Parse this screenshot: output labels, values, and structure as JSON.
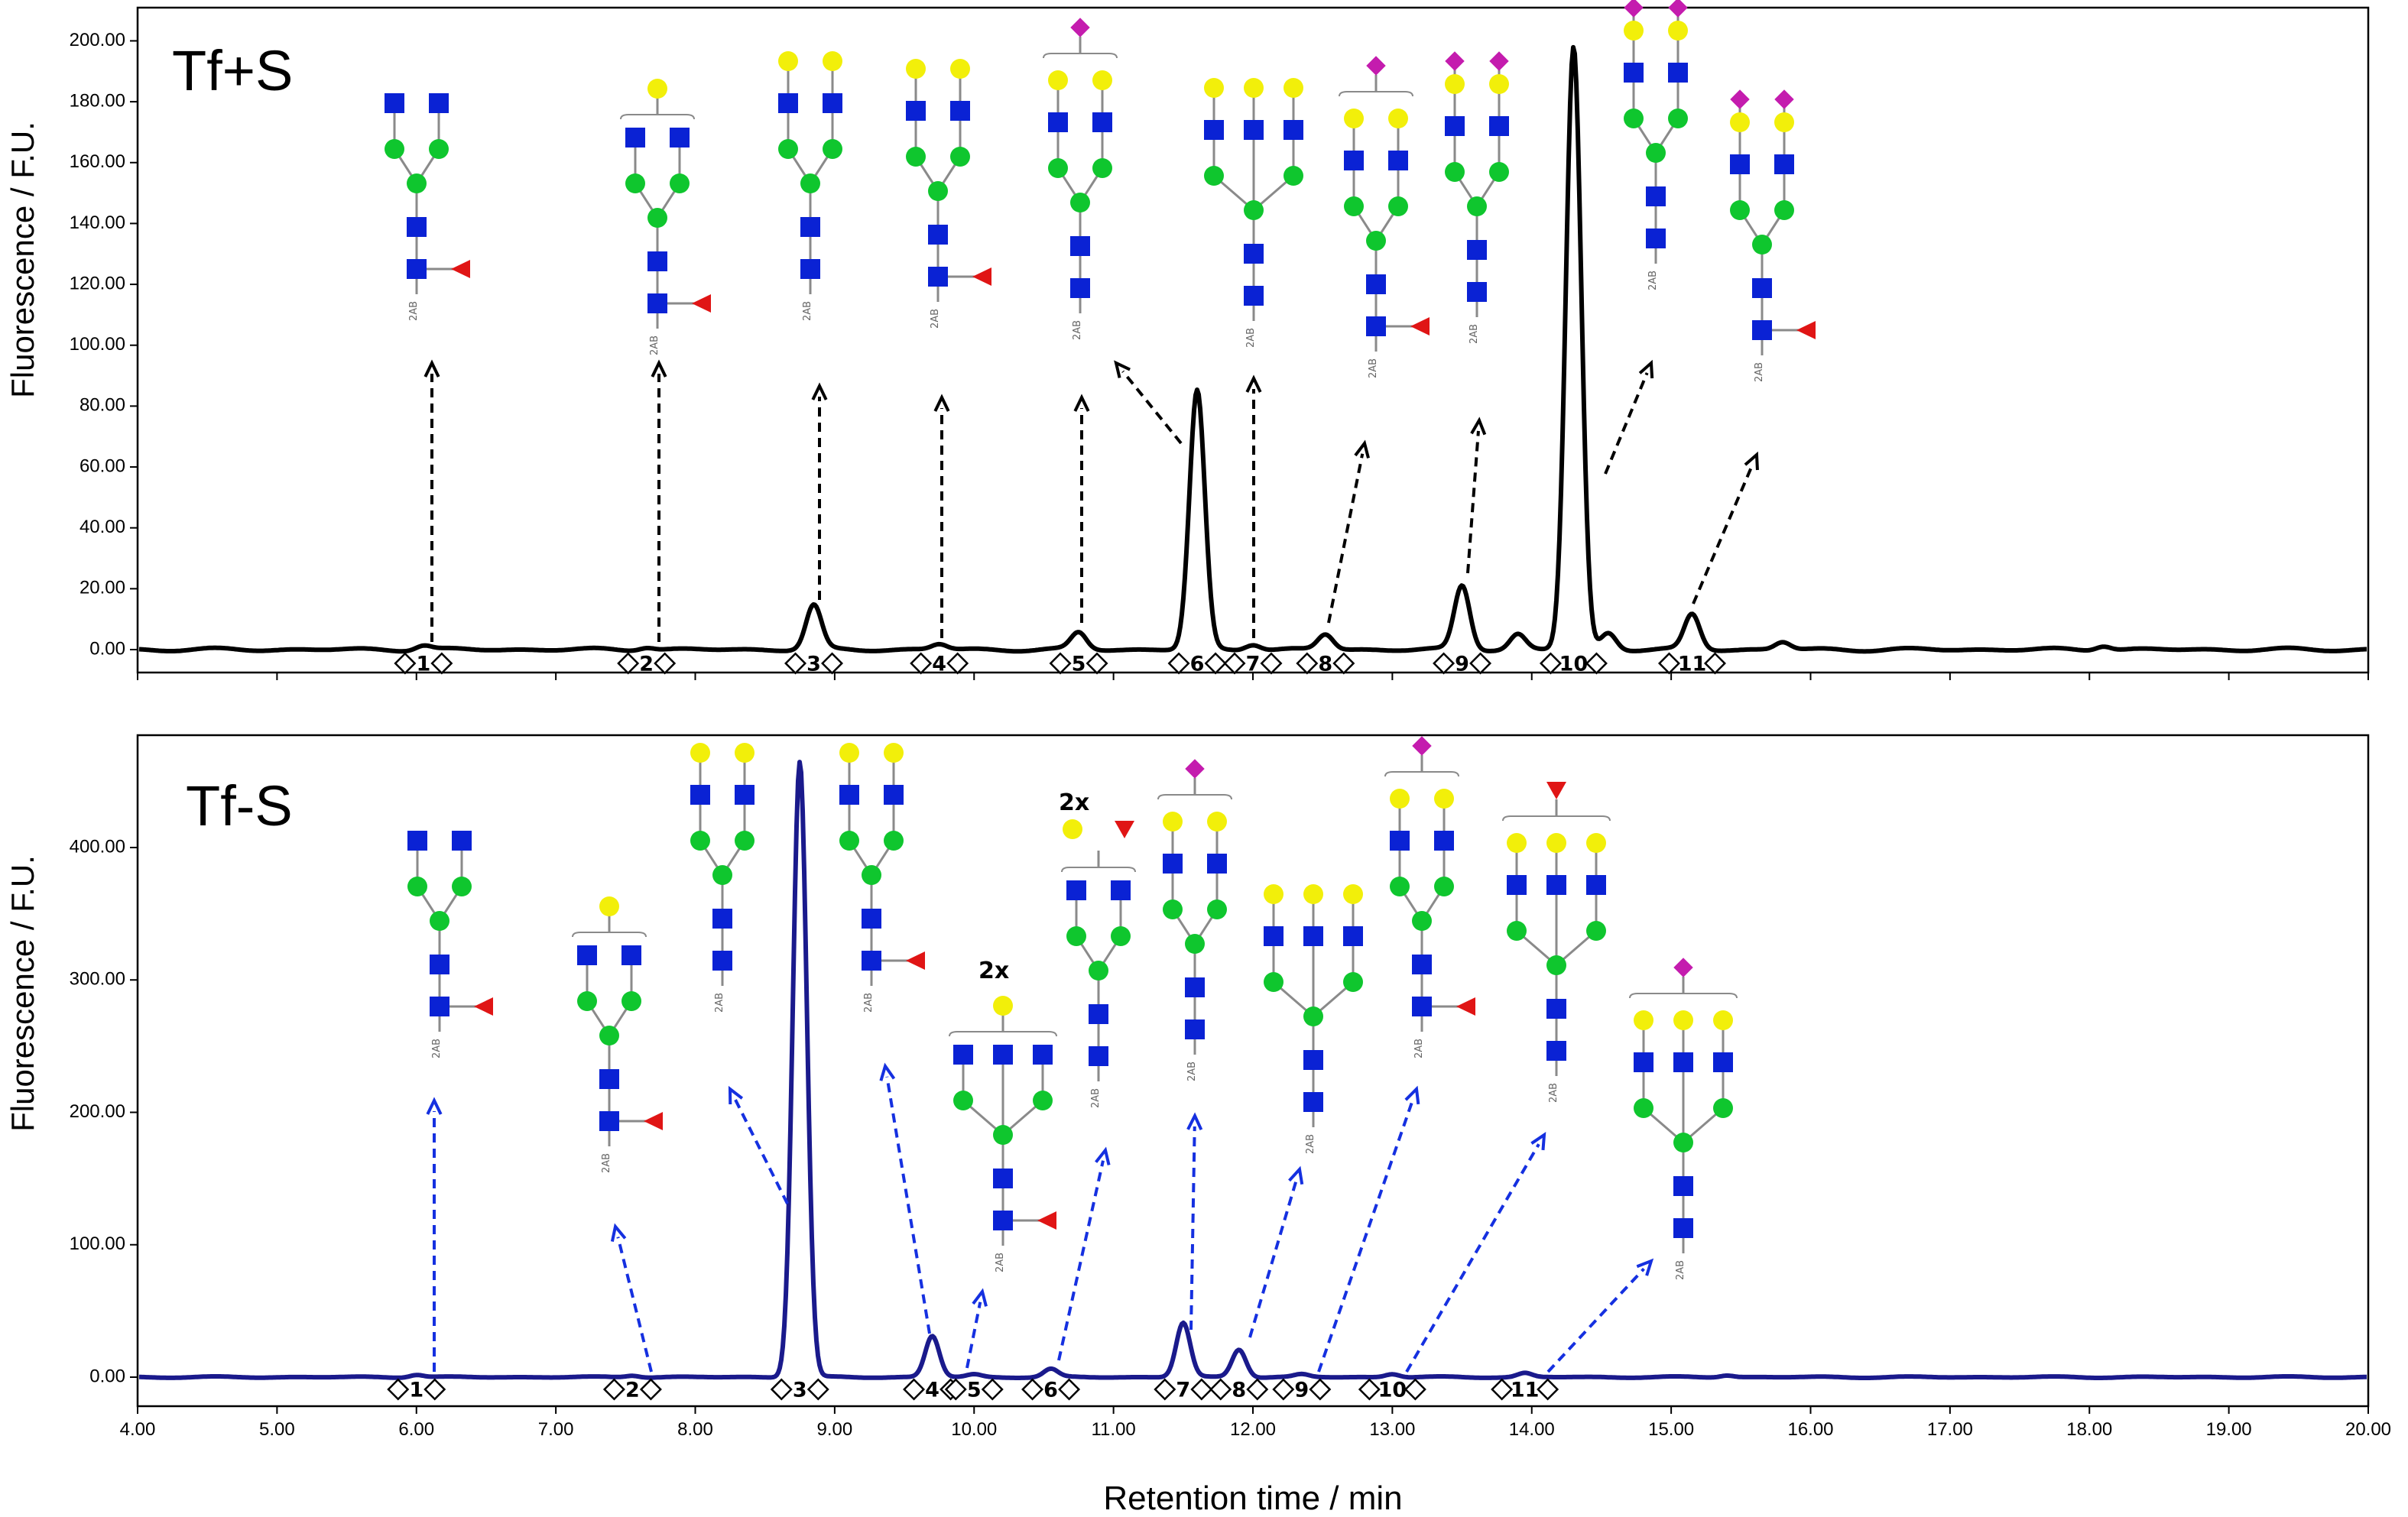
{
  "chart_data": [
    {
      "type": "line",
      "title": "Tf+S",
      "xlabel": "",
      "ylabel": "Fluorescence / F.U.",
      "xlim": [
        4.0,
        20.0
      ],
      "ylim": [
        -2,
        202
      ],
      "y_ticks": [
        "0.00",
        "20.00",
        "40.00",
        "60.00",
        "80.00",
        "100.00",
        "120.00",
        "140.00",
        "160.00",
        "180.00",
        "200.00"
      ],
      "line_color": "#000000",
      "peaks": [
        {
          "label": "1",
          "rt": 6.05,
          "height": 1.5
        },
        {
          "label": "2",
          "rt": 7.65,
          "height": 1.0
        },
        {
          "label": "3",
          "rt": 8.85,
          "height": 14.5
        },
        {
          "label": "4",
          "rt": 9.75,
          "height": 1.8
        },
        {
          "label": "5",
          "rt": 10.75,
          "height": 5.5
        },
        {
          "label": "6",
          "rt": 11.6,
          "height": 85.0
        },
        {
          "label": "7",
          "rt": 12.0,
          "height": 2.0
        },
        {
          "label": "8",
          "rt": 12.52,
          "height": 5.0
        },
        {
          "label": "9",
          "rt": 13.5,
          "height": 21.0
        },
        {
          "label": "10",
          "rt": 14.3,
          "height": 198.0
        },
        {
          "label": "11",
          "rt": 15.15,
          "height": 11.5
        }
      ],
      "minor_peaks": [
        {
          "rt": 13.9,
          "height": 5.0
        },
        {
          "rt": 14.55,
          "height": 5.5
        },
        {
          "rt": 15.8,
          "height": 2.5
        },
        {
          "rt": 18.1,
          "height": 1.5
        }
      ]
    },
    {
      "type": "line",
      "title": "Tf-S",
      "xlabel": "Retention time / min",
      "ylabel": "Fluorescence / F.U.",
      "xlim": [
        4.0,
        20.0
      ],
      "ylim": [
        -5,
        470
      ],
      "y_ticks": [
        "0.00",
        "100.00",
        "200.00",
        "300.00",
        "400.00"
      ],
      "x_ticks": [
        "4.00",
        "5.00",
        "6.00",
        "7.00",
        "8.00",
        "9.00",
        "10.00",
        "11.00",
        "12.00",
        "13.00",
        "14.00",
        "15.00",
        "16.00",
        "17.00",
        "18.00",
        "19.00",
        "20.00"
      ],
      "line_color": "#1a1a8c",
      "peaks": [
        {
          "label": "1",
          "rt": 6.0,
          "height": 2.0
        },
        {
          "label": "2",
          "rt": 7.55,
          "height": 1.5
        },
        {
          "label": "3",
          "rt": 8.75,
          "height": 465.0
        },
        {
          "label": "4",
          "rt": 9.7,
          "height": 31.0
        },
        {
          "label": "5",
          "rt": 10.0,
          "height": 2.0
        },
        {
          "label": "6",
          "rt": 10.55,
          "height": 6.0
        },
        {
          "label": "7",
          "rt": 11.5,
          "height": 41.0
        },
        {
          "label": "8",
          "rt": 11.9,
          "height": 21.0
        },
        {
          "label": "9",
          "rt": 12.35,
          "height": 2.0
        },
        {
          "label": "10",
          "rt": 13.0,
          "height": 2.5
        },
        {
          "label": "11",
          "rt": 13.95,
          "height": 3.0
        }
      ],
      "minor_peaks": [
        {
          "rt": 15.4,
          "height": 1.5
        }
      ]
    }
  ],
  "glycan_annotations": {
    "multiplier_label": "2x",
    "reducing_end_label": "2AB"
  },
  "colors": {
    "galnac_glcnac_square": "#0a22d4",
    "mannose_circle": "#0fc62e",
    "galactose_circle": "#f2ef0a",
    "fucose_triangle": "#e01515",
    "sialic_acid_diamond": "#c41cae",
    "bond": "#8a8a8a",
    "arrow_top": "#000000",
    "arrow_bottom": "#1530e0"
  }
}
